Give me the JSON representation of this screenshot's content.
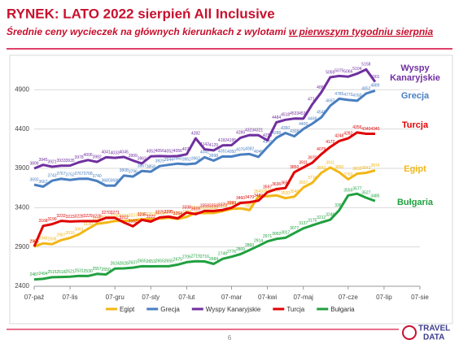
{
  "header": {
    "title": "RYNEK: LATO 2022 sierpień All Inclusive",
    "subtitle": "Średnie ceny wycieczek na głównych kierunkach z wylotami ",
    "subtitle_emphasis": "w pierwszym tygodniu sierpnia"
  },
  "footer": {
    "page_number": "6",
    "logo_top": "TRAVEL",
    "logo_bottom": "DATA"
  },
  "chart_data": {
    "type": "line",
    "categories": [
      "07-paź",
      null,
      null,
      null,
      "07-lis",
      null,
      null,
      null,
      null,
      "07-gru",
      null,
      null,
      null,
      "07-sty",
      null,
      null,
      null,
      "07-lut",
      null,
      null,
      null,
      null,
      "07-mar",
      null,
      null,
      null,
      "07-kwi",
      null,
      null,
      null,
      "07-maj",
      null,
      null,
      null,
      null,
      "07-cze",
      null,
      null,
      null,
      "07-lip",
      null,
      null,
      null,
      "07-sie"
    ],
    "ylim": [
      2400,
      5400
    ],
    "yticks": [
      2400,
      2900,
      3400,
      3900,
      4400,
      4900
    ],
    "grid": true,
    "legend": "bottom",
    "series": [
      {
        "name": "Egipt",
        "color": "#f2b616",
        "values": [
          2905,
          2946,
          2936,
          2987,
          3016,
          3061,
          3130,
          3195,
          3209,
          3230,
          3233,
          3237,
          3252,
          3253,
          3260,
          3271,
          3258,
          3283,
          3334,
          3331,
          3332,
          3356,
          3384,
          3391,
          3368,
          3543,
          3545,
          3557,
          3520,
          3540,
          3657,
          3716,
          3842,
          3911,
          3850,
          3760,
          3832,
          3843,
          3874,
          null,
          null,
          null,
          null,
          null
        ]
      },
      {
        "name": "Grecja",
        "color": "#4a7fc1",
        "values": [
          3692,
          3667,
          3743,
          3767,
          3752,
          3767,
          3768,
          3740,
          3680,
          3680,
          3808,
          3796,
          3867,
          3858,
          3929,
          3944,
          3960,
          3952,
          3962,
          4041,
          3998,
          4051,
          4050,
          4075,
          4082,
          4046,
          4170,
          4288,
          4350,
          4308,
          4400,
          4468,
          4548,
          4697,
          4785,
          4770,
          4760,
          4852,
          4889,
          null,
          null,
          null,
          null,
          null
        ]
      },
      {
        "name": "Wyspy Kanaryjskie",
        "color": "#7030a0",
        "values": [
          3899,
          3945,
          3921,
          3933,
          3935,
          3978,
          4006,
          3982,
          4041,
          4033,
          4045,
          3999,
          3962,
          4052,
          4056,
          4052,
          4056,
          4079,
          4282,
          4142,
          4129,
          4192,
          4195,
          4289,
          4323,
          4321,
          4256,
          4484,
          4518,
          4533,
          4532,
          4714,
          4865,
          5059,
          5075,
          5066,
          5104,
          5158,
          5001,
          null,
          null,
          null,
          null,
          null
        ]
      },
      {
        "name": "Turcja",
        "color": "#e00000",
        "values": [
          2905,
          3168,
          3190,
          3232,
          3223,
          3228,
          3229,
          3228,
          3270,
          3271,
          3212,
          3162,
          3245,
          3222,
          3275,
          3285,
          3264,
          3338,
          3318,
          3358,
          3358,
          3370,
          3399,
          3460,
          3470,
          3489,
          3597,
          3636,
          3650,
          3850,
          3911,
          3970,
          4079,
          4172,
          4248,
          4282,
          4356,
          4340,
          4340,
          null,
          null,
          null,
          null,
          null
        ]
      },
      {
        "name": "Bułgaria",
        "color": "#20a040",
        "values": [
          2487,
          2494,
          2515,
          2518,
          2521,
          2531,
          2530,
          2557,
          2550,
          2624,
          2628,
          2637,
          2655,
          2653,
          2655,
          2655,
          2675,
          2706,
          2719,
          2716,
          2684,
          2749,
          2776,
          2809,
          2860,
          2914,
          2971,
          3002,
          3017,
          3077,
          3137,
          3175,
          3212,
          3246,
          3367,
          3555,
          3577,
          3527,
          3485,
          null,
          null,
          null,
          null,
          null
        ]
      }
    ]
  }
}
